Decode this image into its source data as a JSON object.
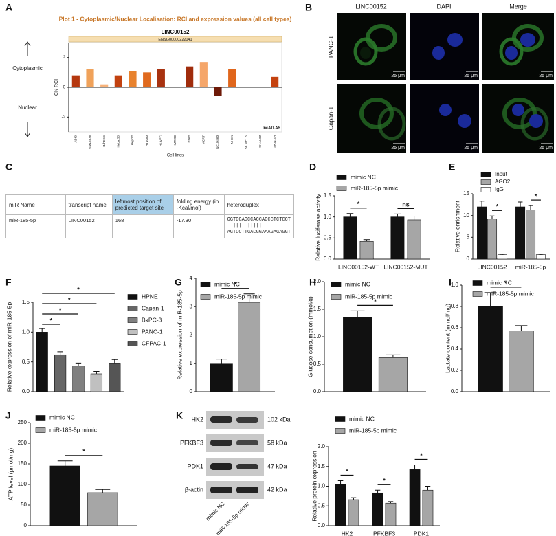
{
  "panel_labels": [
    "A",
    "B",
    "C",
    "D",
    "E",
    "F",
    "G",
    "H",
    "I",
    "J",
    "K"
  ],
  "image_grid": {
    "columns": [
      "LINC00152",
      "DAPI",
      "Merge"
    ],
    "rows": [
      "PANC-1",
      "Capan-1"
    ],
    "scale_bar": "25 μm"
  },
  "table": {
    "headers": [
      "miR Name",
      "transcript name",
      "leftmost position of predicted target site",
      "folding energy (in -Kcal/mol)",
      "heteroduplex"
    ],
    "rows": [
      [
        "miR-185-5p",
        "LINC00152",
        "168",
        "-17.30",
        [
          "GGTGGAGCCACCAGCCTCTCCT",
          "  |||  |||||",
          "AGTCCTTGACGGAAAGAGAGGT"
        ]
      ]
    ]
  },
  "blot": {
    "proteins": [
      {
        "name": "HK2",
        "size": "102 kDa"
      },
      {
        "name": "PFKBF3",
        "size": "58 kDa"
      },
      {
        "name": "PDK1",
        "size": "47 kDa"
      },
      {
        "name": "β-actin",
        "size": "42 kDa"
      }
    ],
    "lanes": [
      "mimic NC",
      "miR-185-5p mimic"
    ]
  },
  "chart_data": [
    {
      "type": "bar",
      "title": "Plot 1 - Cytoplasmic/Nuclear Localisation: RCI and expression values (all cell types)",
      "subtitle": "LINC00152",
      "gene_id": "ENSG00000222041",
      "ylabel": "CN RCI",
      "xlabel": "Cell lines",
      "source": "lncATLAS",
      "side_labels": [
        "Cytoplasmic",
        "Nuclear"
      ],
      "categories": [
        "A549",
        "GM12878",
        "H1.hESC",
        "HeLa.S3",
        "HepG2",
        "HT1080",
        "HUVEC",
        "IMR.90",
        "K562",
        "MCF.7",
        "NCI.H460",
        "NHEK",
        "SK.MEL.5",
        "SK.N.DZ",
        "SK.N.SH"
      ],
      "values": [
        0.8,
        1.2,
        0.2,
        0.8,
        1.1,
        1.0,
        1.2,
        null,
        1.4,
        1.7,
        -0.6,
        1.2,
        null,
        null,
        0.7
      ],
      "colors": [
        "#b5380f",
        "#f0a25a",
        "#f7b27a",
        "#c2410f",
        "#e8822e",
        "#e06a1e",
        "#a83210",
        null,
        "#a02c0c",
        "#f5a66a",
        "#6e1a08",
        "#e0661c",
        null,
        null,
        "#c4420f"
      ],
      "ylim": [
        -3,
        3
      ],
      "yticks": [
        -2,
        0,
        2
      ]
    },
    {
      "type": "bar",
      "ylabel": "Relative luciferase activity",
      "categories": [
        "LINC00152-WT",
        "LINC00152-MUT"
      ],
      "series": [
        {
          "name": "mimic NC",
          "color": "#111111",
          "values": [
            1.0,
            1.0
          ],
          "errors": [
            0.08,
            0.07
          ]
        },
        {
          "name": "miR-185-5p mimic",
          "color": "#a6a6a6",
          "values": [
            0.42,
            0.93
          ],
          "errors": [
            0.04,
            0.09
          ]
        }
      ],
      "ylim": [
        0,
        1.5
      ],
      "yticks": [
        {
          "value": 0,
          "label": "0.0"
        },
        {
          "value": 0.5,
          "label": "0.5"
        },
        {
          "value": 1,
          "label": "1.0"
        },
        {
          "value": 1.5,
          "label": "1.5"
        }
      ],
      "annotations": [
        "*",
        "ns"
      ]
    },
    {
      "type": "bar",
      "ylabel": "Relative enrichment",
      "categories": [
        "LINC00152",
        "miR-185-5p"
      ],
      "series": [
        {
          "name": "Input",
          "color": "#111111",
          "values": [
            12,
            12
          ],
          "errors": [
            1.3,
            1.1
          ]
        },
        {
          "name": "AGO2",
          "color": "#a6a6a6",
          "values": [
            9.2,
            11.3
          ],
          "errors": [
            0.7,
            1.0
          ]
        },
        {
          "name": "IgG",
          "color": "#ffffff",
          "values": [
            1,
            1
          ],
          "errors": [
            0.15,
            0.15
          ]
        }
      ],
      "ylim": [
        0,
        15
      ],
      "yticks": [
        0,
        5,
        10,
        15
      ],
      "annotations": [
        "*",
        "*"
      ]
    },
    {
      "type": "bar",
      "ylabel": "Relative expression of miR-185-5p",
      "categories": [
        "HPNE",
        "Capan-1",
        "BxPC-3",
        "PANC-1",
        "CFPAC-1"
      ],
      "values": [
        1.0,
        0.62,
        0.43,
        0.3,
        0.48
      ],
      "errors": [
        0.06,
        0.05,
        0.05,
        0.04,
        0.06
      ],
      "colors": [
        "#111111",
        "#666666",
        "#808080",
        "#c0c0c0",
        "#555555"
      ],
      "ylim": [
        0,
        1.5
      ],
      "yticks": [
        {
          "value": 0,
          "label": "0.0"
        },
        {
          "value": 0.5,
          "label": "0.5"
        },
        {
          "value": 1,
          "label": "1.0"
        },
        {
          "value": 1.5,
          "label": "1.5"
        }
      ],
      "annotations": [
        "*",
        "*",
        "*",
        "*"
      ]
    },
    {
      "type": "bar",
      "ylabel": "Relative expression of miR-185-5p",
      "series": [
        {
          "name": "mimic NC",
          "color": "#111111",
          "values": [
            1.0
          ],
          "errors": [
            0.15
          ]
        },
        {
          "name": "miR-185-5p mimic",
          "color": "#a6a6a6",
          "values": [
            3.15
          ],
          "errors": [
            0.3
          ]
        }
      ],
      "ylim": [
        0,
        4
      ],
      "yticks": [
        0,
        1,
        2,
        3,
        4
      ],
      "annotations": [
        "*"
      ]
    },
    {
      "type": "bar",
      "ylabel": "Glucose consumption (mmol/g)",
      "series": [
        {
          "name": "mimic NC",
          "color": "#111111",
          "values": [
            1.35
          ],
          "errors": [
            0.12
          ]
        },
        {
          "name": "miR-185-5p mimic",
          "color": "#a6a6a6",
          "values": [
            0.62
          ],
          "errors": [
            0.05
          ]
        }
      ],
      "ylim": [
        0,
        2
      ],
      "yticks": [
        {
          "value": 0,
          "label": "0.0"
        },
        {
          "value": 0.5,
          "label": "0.5"
        },
        {
          "value": 1,
          "label": "1.0"
        },
        {
          "value": 1.5,
          "label": "1.5"
        },
        {
          "value": 2,
          "label": "2.0"
        }
      ],
      "annotations": [
        "*"
      ]
    },
    {
      "type": "bar",
      "ylabel": "Lactate content (mmol/mg)",
      "series": [
        {
          "name": "mimic NC",
          "color": "#111111",
          "values": [
            0.8
          ],
          "errors": [
            0.13
          ]
        },
        {
          "name": "miR-185-5p mimic",
          "color": "#a6a6a6",
          "values": [
            0.57
          ],
          "errors": [
            0.05
          ]
        }
      ],
      "ylim": [
        0,
        1
      ],
      "yticks": [
        {
          "value": 0,
          "label": "0.0"
        },
        0.2,
        0.4,
        0.6,
        0.8,
        {
          "value": 1,
          "label": "1.0"
        }
      ],
      "annotations": [
        "*"
      ]
    },
    {
      "type": "bar",
      "ylabel": "ATP level (μmol/mg)",
      "series": [
        {
          "name": "mimic NC",
          "color": "#111111",
          "values": [
            145
          ],
          "errors": [
            12
          ]
        },
        {
          "name": "miR-185-5p mimic",
          "color": "#a6a6a6",
          "values": [
            80
          ],
          "errors": [
            8
          ]
        }
      ],
      "ylim": [
        0,
        250
      ],
      "yticks": [
        0,
        50,
        100,
        150,
        200,
        250
      ],
      "annotations": [
        "*"
      ]
    },
    {
      "type": "bar",
      "ylabel": "Relative protein expression",
      "categories": [
        "HK2",
        "PFKBF3",
        "PDK1"
      ],
      "series": [
        {
          "name": "mimic NC",
          "color": "#111111",
          "values": [
            1.05,
            0.83,
            1.42
          ],
          "errors": [
            0.09,
            0.07,
            0.12
          ]
        },
        {
          "name": "miR-185-5p mimic",
          "color": "#a6a6a6",
          "values": [
            0.66,
            0.57,
            0.9
          ],
          "errors": [
            0.05,
            0.04,
            0.1
          ]
        }
      ],
      "ylim": [
        0,
        2
      ],
      "yticks": [
        {
          "value": 0,
          "label": "0.0"
        },
        {
          "value": 0.5,
          "label": "0.5"
        },
        {
          "value": 1,
          "label": "1.0"
        },
        {
          "value": 1.5,
          "label": "1.5"
        },
        {
          "value": 2,
          "label": "2.0"
        }
      ],
      "annotations": [
        "*",
        "*",
        "*"
      ]
    }
  ]
}
